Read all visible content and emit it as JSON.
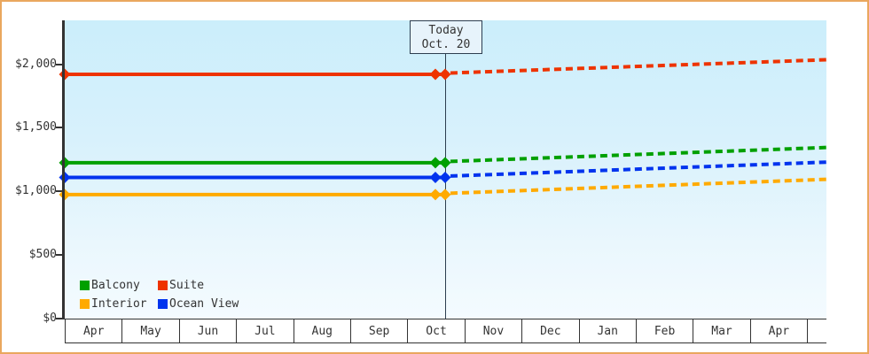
{
  "page": {
    "background": "#ffffff",
    "border_color": "#eaa75e",
    "text_color": "#333333"
  },
  "today": {
    "line1": "Today",
    "line2": "Oct. 20"
  },
  "chart_data": {
    "type": "line",
    "title": "",
    "xlabel": "",
    "ylabel": "",
    "grid": "off",
    "legend_position": "bottom-left",
    "x_categories": [
      "Apr",
      "May",
      "Jun",
      "Jul",
      "Aug",
      "Sep",
      "Oct",
      "Nov",
      "Dec",
      "Jan",
      "Feb",
      "Mar",
      "Apr"
    ],
    "ytick_values": [
      0,
      500,
      1000,
      1500,
      2000
    ],
    "ytick_labels": [
      "$0",
      "$500",
      "$1,000",
      "$1,500",
      "$2,000"
    ],
    "ylim": [
      0,
      2340
    ],
    "today_x_fraction": 0.4994,
    "history_style": "solid flat line from Apr to Today",
    "forecast_style": "dashed rising line from Today to Apr",
    "series": [
      {
        "name": "Balcony",
        "color": "#00a000",
        "current_price": 1225,
        "forecast_price": 1345
      },
      {
        "name": "Suite",
        "color": "#ee3300",
        "current_price": 1920,
        "forecast_price": 2035
      },
      {
        "name": "Interior",
        "color": "#ffaa00",
        "current_price": 975,
        "forecast_price": 1095
      },
      {
        "name": "Ocean View",
        "color": "#0033ee",
        "current_price": 1110,
        "forecast_price": 1230
      }
    ],
    "legend_order": [
      "Balcony",
      "Suite",
      "Interior",
      "Ocean View"
    ]
  }
}
